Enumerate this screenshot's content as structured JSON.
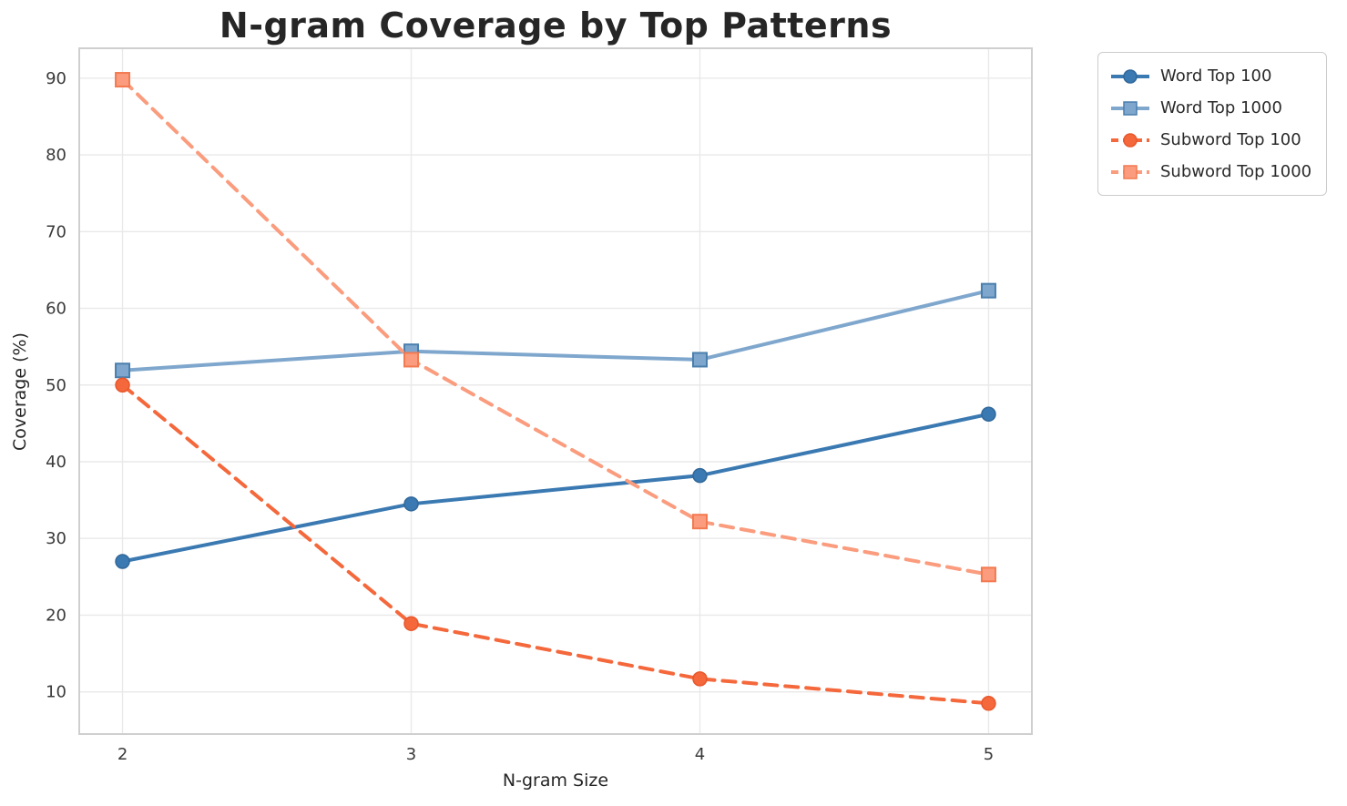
{
  "title": "N-gram Coverage by Top Patterns",
  "chart_data": {
    "type": "line",
    "x": [
      2,
      3,
      4,
      5
    ],
    "xlabel": "N-gram Size",
    "ylabel": "Coverage (%)",
    "xticks": [
      2,
      3,
      4,
      5
    ],
    "yticks": [
      10,
      20,
      30,
      40,
      50,
      60,
      70,
      80,
      90
    ],
    "xlim": [
      1.85,
      5.15
    ],
    "ylim": [
      4.5,
      93.9
    ],
    "grid": true,
    "legend_position": "outside-top-right",
    "series": [
      {
        "name": "Word Top 100",
        "values": [
          27.0,
          34.5,
          38.2,
          46.2
        ],
        "color": "#3A79B1",
        "marker_edge": "#31689A",
        "marker": "circle",
        "dash": "solid"
      },
      {
        "name": "Word Top 1000",
        "values": [
          51.9,
          54.4,
          53.3,
          62.3
        ],
        "color": "#7FA7CD",
        "marker_edge": "#4A7FAD",
        "marker": "square",
        "dash": "solid"
      },
      {
        "name": "Subword Top 100",
        "values": [
          50.0,
          18.9,
          11.7,
          8.5
        ],
        "color": "#F4683C",
        "marker_edge": "#E8572B",
        "marker": "circle",
        "dash": "dashed"
      },
      {
        "name": "Subword Top 1000",
        "values": [
          89.8,
          53.3,
          32.2,
          25.3
        ],
        "color": "#FA9C7D",
        "marker_edge": "#F37A50",
        "marker": "square",
        "dash": "dashed"
      }
    ],
    "style": {
      "grid_color": "#E9E9E9",
      "spine_color": "#CFCFCF",
      "background": "#FFFFFF"
    }
  }
}
